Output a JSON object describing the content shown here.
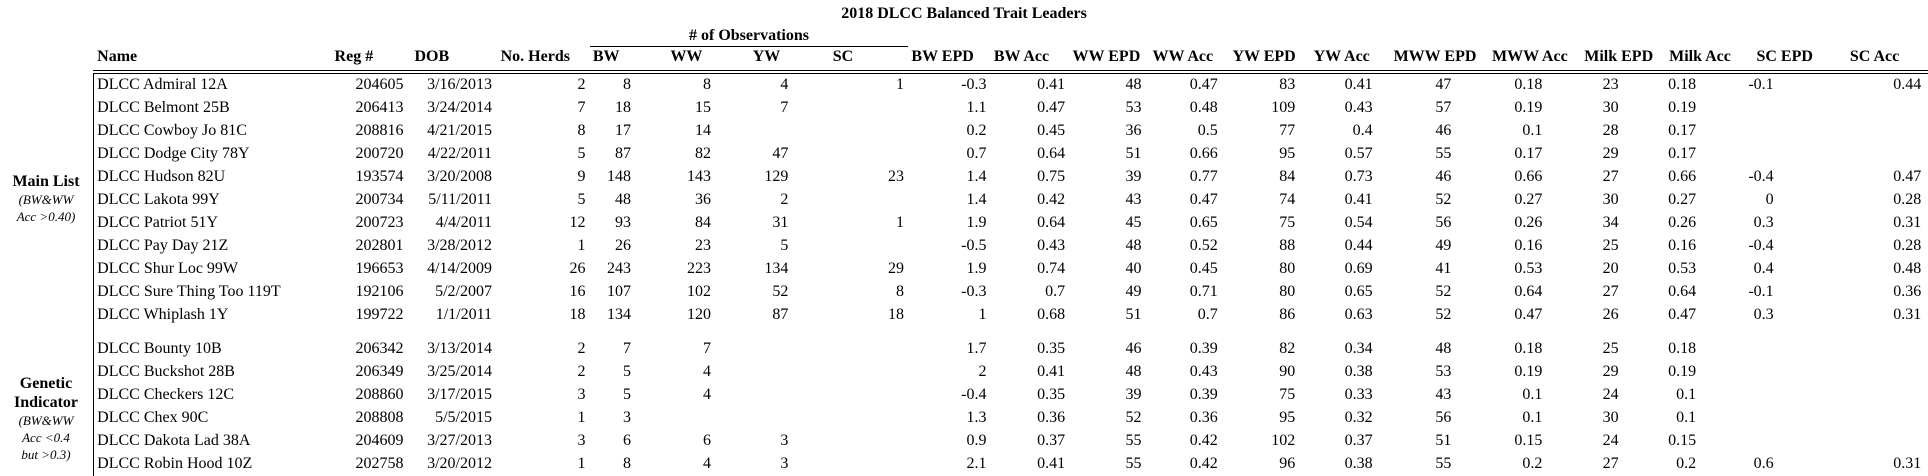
{
  "title": "2018 DLCC Balanced Trait Leaders",
  "observations_header": "# of Observations",
  "columns": [
    "Name",
    "Reg #",
    "DOB",
    "No. Herds",
    "BW",
    "WW",
    "YW",
    "SC",
    "BW EPD",
    "BW Acc",
    "WW EPD",
    "WW Acc",
    "YW EPD",
    "YW Acc",
    "MWW EPD",
    "MWW Acc",
    "Milk EPD",
    "Milk Acc",
    "SC EPD",
    "SC Acc"
  ],
  "groups": [
    {
      "label": "Main List",
      "note": "(BW&WW Acc >0.40)",
      "rows": [
        [
          "DLCC Admiral 12A",
          204605,
          "3/16/2013",
          2,
          8,
          8,
          4,
          1,
          -0.3,
          0.41,
          48,
          0.47,
          83,
          0.41,
          47,
          0.18,
          23,
          0.18,
          -0.1,
          0.44
        ],
        [
          "DLCC Belmont 25B",
          206413,
          "3/24/2014",
          7,
          18,
          15,
          7,
          null,
          1.1,
          0.47,
          53,
          0.48,
          109,
          0.43,
          57,
          0.19,
          30,
          0.19,
          null,
          null
        ],
        [
          "DLCC Cowboy Jo 81C",
          208816,
          "4/21/2015",
          8,
          17,
          14,
          null,
          null,
          0.2,
          0.45,
          36,
          0.5,
          77,
          0.4,
          46,
          0.1,
          28,
          0.17,
          null,
          null
        ],
        [
          "DLCC Dodge City 78Y",
          200720,
          "4/22/2011",
          5,
          87,
          82,
          47,
          null,
          0.7,
          0.64,
          51,
          0.66,
          95,
          0.57,
          55,
          0.17,
          29,
          0.17,
          null,
          null
        ],
        [
          "DLCC Hudson 82U",
          193574,
          "3/20/2008",
          9,
          148,
          143,
          129,
          23,
          1.4,
          0.75,
          39,
          0.77,
          84,
          0.73,
          46,
          0.66,
          27,
          0.66,
          -0.4,
          0.47
        ],
        [
          "DLCC Lakota 99Y",
          200734,
          "5/11/2011",
          5,
          48,
          36,
          2,
          null,
          1.4,
          0.42,
          43,
          0.47,
          74,
          0.41,
          52,
          0.27,
          30,
          0.27,
          0,
          0.28
        ],
        [
          "DLCC Patriot 51Y",
          200723,
          "4/4/2011",
          12,
          93,
          84,
          31,
          1,
          1.9,
          0.64,
          45,
          0.65,
          75,
          0.54,
          56,
          0.26,
          34,
          0.26,
          0.3,
          0.31
        ],
        [
          "DLCC Pay Day 21Z",
          202801,
          "3/28/2012",
          1,
          26,
          23,
          5,
          null,
          -0.5,
          0.43,
          48,
          0.52,
          88,
          0.44,
          49,
          0.16,
          25,
          0.16,
          -0.4,
          0.28
        ],
        [
          "DLCC Shur Loc 99W",
          196653,
          "4/14/2009",
          26,
          243,
          223,
          134,
          29,
          1.9,
          0.74,
          40,
          0.45,
          80,
          0.69,
          41,
          0.53,
          20,
          0.53,
          0.4,
          0.48
        ],
        [
          "DLCC Sure Thing Too 119T",
          192106,
          "5/2/2007",
          16,
          107,
          102,
          52,
          8,
          -0.3,
          0.7,
          49,
          0.71,
          80,
          0.65,
          52,
          0.64,
          27,
          0.64,
          -0.1,
          0.36
        ],
        [
          "DLCC Whiplash 1Y",
          199722,
          "1/1/2011",
          18,
          134,
          120,
          87,
          18,
          1,
          0.68,
          51,
          0.7,
          86,
          0.63,
          52,
          0.47,
          26,
          0.47,
          0.3,
          0.31
        ]
      ]
    },
    {
      "label": "Genetic Indicator",
      "note": "(BW&WW Acc <0.4 but >0.3)",
      "rows": [
        [
          "DLCC Bounty 10B",
          206342,
          "3/13/2014",
          2,
          7,
          7,
          null,
          null,
          1.7,
          0.35,
          46,
          0.39,
          82,
          0.34,
          48,
          0.18,
          25,
          0.18,
          null,
          null
        ],
        [
          "DLCC Buckshot 28B",
          206349,
          "3/25/2014",
          2,
          5,
          4,
          null,
          null,
          2,
          0.41,
          48,
          0.43,
          90,
          0.38,
          53,
          0.19,
          29,
          0.19,
          null,
          null
        ],
        [
          "DLCC Checkers 12C",
          208860,
          "3/17/2015",
          3,
          5,
          4,
          null,
          null,
          -0.4,
          0.35,
          39,
          0.39,
          75,
          0.33,
          43,
          0.1,
          24,
          0.1,
          null,
          null
        ],
        [
          "DLCC Chex 90C",
          208808,
          "5/5/2015",
          1,
          3,
          null,
          null,
          null,
          1.3,
          0.36,
          52,
          0.36,
          95,
          0.32,
          56,
          0.1,
          30,
          0.1,
          null,
          null
        ],
        [
          "DLCC Dakota Lad 38A",
          204609,
          "3/27/2013",
          3,
          6,
          6,
          3,
          null,
          0.9,
          0.37,
          55,
          0.42,
          102,
          0.37,
          51,
          0.15,
          24,
          0.15,
          null,
          null
        ],
        [
          "DLCC Robin Hood 10Z",
          202758,
          "3/20/2012",
          1,
          8,
          4,
          3,
          null,
          2.1,
          0.41,
          55,
          0.42,
          96,
          0.38,
          55,
          0.2,
          27,
          0.2,
          0.6,
          0.31
        ]
      ]
    }
  ]
}
